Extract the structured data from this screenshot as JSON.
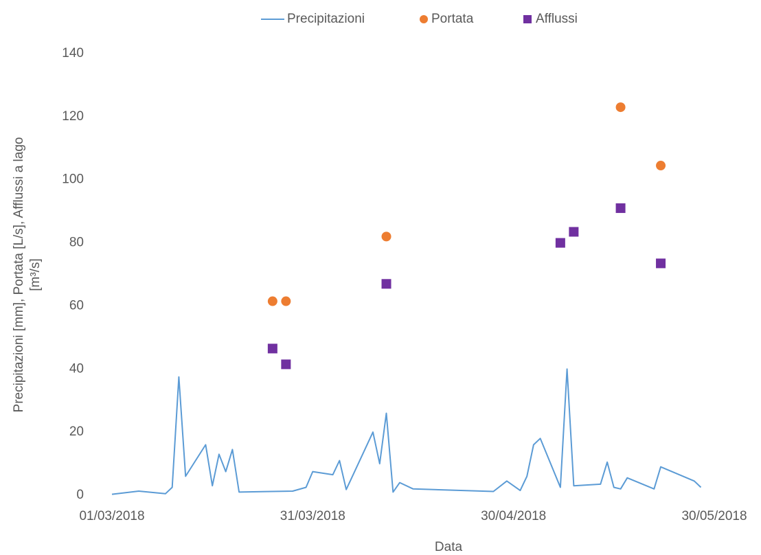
{
  "chart_data": {
    "type": "combo",
    "xlabel": "Data",
    "ylabel": [
      "Precipitazioni [mm], Portata [L/s], Afflussi a lago",
      "[m³/s]"
    ],
    "xlim": [
      "2018-03-01",
      "2018-05-30"
    ],
    "xticks": [
      {
        "value": "2018-03-01",
        "label": "01/03/2018"
      },
      {
        "value": "2018-03-31",
        "label": "31/03/2018"
      },
      {
        "value": "2018-04-30",
        "label": "30/04/2018"
      },
      {
        "value": "2018-05-30",
        "label": "30/05/2018"
      }
    ],
    "ylim": [
      0,
      140
    ],
    "yticks": [
      0,
      20,
      40,
      60,
      80,
      100,
      120,
      140
    ],
    "grid": false,
    "legend": "top",
    "series": [
      {
        "name": "Precipitazioni",
        "type": "line",
        "color": "#5b9bd5",
        "x": [
          "2018-03-01",
          "2018-03-05",
          "2018-03-09",
          "2018-03-10",
          "2018-03-11",
          "2018-03-12",
          "2018-03-15",
          "2018-03-16",
          "2018-03-17",
          "2018-03-18",
          "2018-03-19",
          "2018-03-20",
          "2018-03-28",
          "2018-03-30",
          "2018-03-31",
          "2018-04-03",
          "2018-04-04",
          "2018-04-05",
          "2018-04-09",
          "2018-04-10",
          "2018-04-11",
          "2018-04-12",
          "2018-04-13",
          "2018-04-15",
          "2018-04-27",
          "2018-04-29",
          "2018-05-01",
          "2018-05-02",
          "2018-05-03",
          "2018-05-04",
          "2018-05-07",
          "2018-05-08",
          "2018-05-09",
          "2018-05-13",
          "2018-05-14",
          "2018-05-15",
          "2018-05-16",
          "2018-05-17",
          "2018-05-21",
          "2018-05-22",
          "2018-05-27",
          "2018-05-28"
        ],
        "values": [
          0.3,
          1.3,
          0.5,
          2.5,
          37.5,
          6,
          16,
          3,
          13,
          7.5,
          14.5,
          1,
          1.3,
          2.5,
          7.5,
          6.5,
          11,
          1.8,
          20,
          10,
          26,
          1,
          4,
          2,
          1.2,
          4.5,
          1.5,
          6,
          16,
          18,
          2.5,
          40,
          3,
          3.5,
          10.5,
          2.5,
          2,
          5.5,
          2,
          9,
          4.5,
          2.5
        ]
      },
      {
        "name": "Portata",
        "type": "scatter",
        "marker": "circle",
        "color": "#ed7d31",
        "x": [
          "2018-03-25",
          "2018-03-27",
          "2018-04-11",
          "2018-05-16",
          "2018-05-22"
        ],
        "values": [
          61.5,
          61.5,
          82,
          123,
          104.5
        ]
      },
      {
        "name": "Afflussi",
        "type": "scatter",
        "marker": "square",
        "color": "#7030a0",
        "x": [
          "2018-03-25",
          "2018-03-27",
          "2018-04-11",
          "2018-05-07",
          "2018-05-09",
          "2018-05-16",
          "2018-05-22"
        ],
        "values": [
          46.5,
          41.5,
          67,
          80,
          83.5,
          91,
          73.5
        ]
      }
    ]
  }
}
